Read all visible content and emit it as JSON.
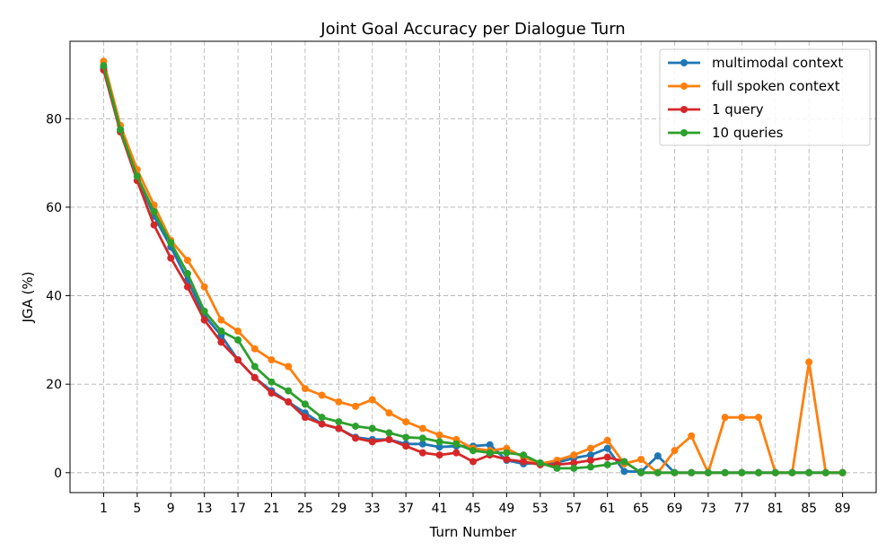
{
  "chart_data": {
    "type": "line",
    "title": "Joint Goal Accuracy per Dialogue Turn",
    "xlabel": "Turn Number",
    "ylabel": "JGA (%)",
    "xlim": [
      -3,
      93
    ],
    "ylim": [
      -4.5,
      97.5
    ],
    "xticks": [
      1,
      5,
      9,
      13,
      17,
      21,
      25,
      29,
      33,
      37,
      41,
      45,
      49,
      53,
      57,
      61,
      65,
      69,
      73,
      77,
      81,
      85,
      89
    ],
    "yticks": [
      0,
      20,
      40,
      60,
      80
    ],
    "grid": true,
    "legend_position": "top-right",
    "x": [
      1,
      3,
      5,
      7,
      9,
      11,
      13,
      15,
      17,
      19,
      21,
      23,
      25,
      27,
      29,
      31,
      33,
      35,
      37,
      39,
      41,
      43,
      45,
      47,
      49,
      51,
      53,
      55,
      57,
      59,
      61,
      63,
      65,
      67,
      69,
      71,
      73,
      75,
      77,
      79,
      81,
      83,
      85,
      87,
      89
    ],
    "series": [
      {
        "name": "multimodal context",
        "color": "#1f77b4",
        "values": [
          91.5,
          77.5,
          67,
          58,
          51,
          43.5,
          35.5,
          31,
          25.5,
          21.5,
          18.5,
          16,
          13.5,
          11,
          10,
          8,
          7.5,
          7.5,
          6.5,
          6.5,
          5.8,
          6,
          6,
          6.3,
          2.8,
          2,
          2.2,
          2.3,
          3.3,
          4,
          5.5,
          0.3,
          0.2,
          3.8,
          0,
          0,
          0,
          0,
          0,
          0,
          0,
          0,
          0,
          0,
          0
        ]
      },
      {
        "name": "full spoken context",
        "color": "#ff7f0e",
        "values": [
          93,
          78.5,
          68.5,
          60.5,
          52.5,
          48,
          42,
          34.5,
          32,
          28,
          25.5,
          24,
          19,
          17.5,
          16,
          15,
          16.5,
          13.5,
          11.5,
          10,
          8.5,
          7.5,
          5.5,
          5,
          5.5,
          3.5,
          2,
          2.8,
          4,
          5.5,
          7.3,
          2,
          3,
          0,
          5,
          8.3,
          0,
          12.5,
          12.5,
          12.5,
          0,
          0,
          25,
          0,
          0
        ]
      },
      {
        "name": "1 query",
        "color": "#d62728",
        "values": [
          91,
          77,
          66,
          56,
          48.5,
          42,
          34.5,
          29.5,
          25.5,
          21.5,
          18,
          16,
          12.5,
          11,
          10,
          7.8,
          7,
          7.5,
          6,
          4.5,
          4,
          4.5,
          2.5,
          4,
          3,
          2.5,
          1.8,
          1.8,
          2.2,
          2.8,
          3.5,
          2.5,
          0,
          0,
          0,
          0,
          0,
          0,
          0,
          0,
          0,
          0,
          0,
          0,
          0
        ]
      },
      {
        "name": "10 queries",
        "color": "#2ca02c",
        "values": [
          92,
          77.5,
          67,
          59,
          52,
          45,
          36.5,
          32,
          30,
          24,
          20.5,
          18.5,
          15.5,
          12.5,
          11.5,
          10.5,
          10,
          9,
          8,
          7.8,
          7,
          6.5,
          5,
          4.5,
          4.5,
          4,
          2.2,
          1,
          1,
          1.3,
          1.8,
          2.5,
          0,
          0,
          0,
          0,
          0,
          0,
          0,
          0,
          0,
          0,
          0,
          0,
          0
        ]
      }
    ]
  }
}
